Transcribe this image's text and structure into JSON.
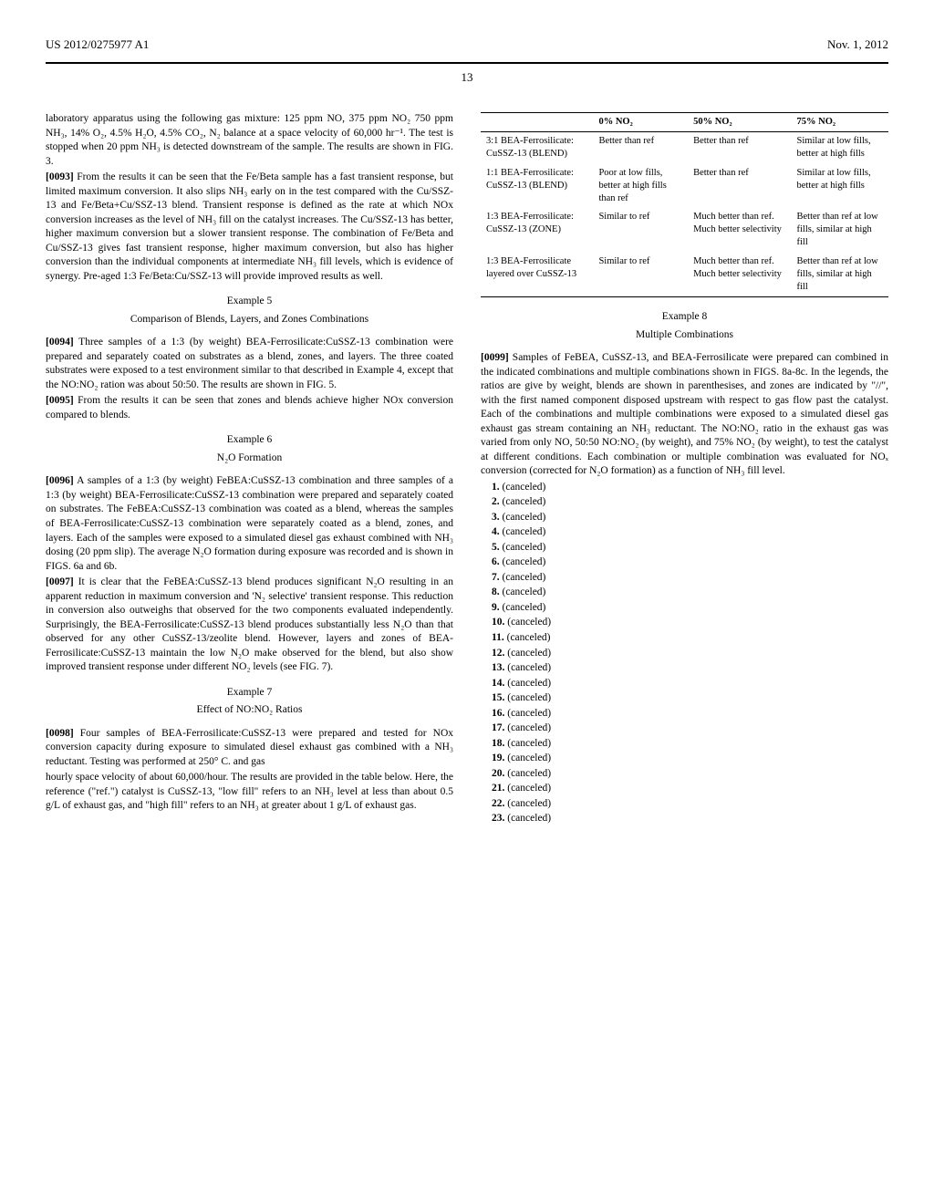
{
  "header": {
    "left": "US 2012/0275977 A1",
    "right": "Nov. 1, 2012"
  },
  "page_number": "13",
  "col1": {
    "p1_intro": "laboratory apparatus using the following gas mixture: 125 ppm NO, 375 ppm NO₂ 750 ppm NH₃, 14% O₂, 4.5% H₂O, 4.5% CO₂, N₂ balance at a space velocity of 60,000 hr⁻¹. The test is stopped when 20 ppm NH₃ is detected downstream of the sample. The results are shown in FIG. 3.",
    "p0093_num": "[0093]",
    "p0093": "From the results it can be seen that the Fe/Beta sample has a fast transient response, but limited maximum conversion. It also slips NH₃ early on in the test compared with the Cu/SSZ-13 and Fe/Beta+Cu/SSZ-13 blend. Transient response is defined as the rate at which NOx conversion increases as the level of NH₃ fill on the catalyst increases. The Cu/SSZ-13 has better, higher maximum conversion but a slower transient response. The combination of Fe/Beta and Cu/SSZ-13 gives fast transient response, higher maximum conversion, but also has higher conversion than the individual components at intermediate NH₃ fill levels, which is evidence of synergy. Pre-aged 1:3 Fe/Beta:Cu/SSZ-13 will provide improved results as well.",
    "ex5_head": "Example 5",
    "ex5_sub": "Comparison of Blends, Layers, and Zones Combinations",
    "p0094_num": "[0094]",
    "p0094": "Three samples of a 1:3 (by weight) BEA-Ferrosilicate:CuSSZ-13 combination were prepared and separately coated on substrates as a blend, zones, and layers. The three coated substrates were exposed to a test environment similar to that described in Example 4, except that the NO:NO₂ ration was about 50:50. The results are shown in FIG. 5.",
    "p0095_num": "[0095]",
    "p0095": "From the results it can be seen that zones and blends achieve higher NOx conversion compared to blends.",
    "ex6_head": "Example 6",
    "ex6_sub": "N₂O Formation",
    "p0096_num": "[0096]",
    "p0096": "A samples of a 1:3 (by weight) FeBEA:CuSSZ-13 combination and three samples of a 1:3 (by weight) BEA-Ferrosilicate:CuSSZ-13 combination were prepared and separately coated on substrates. The FeBEA:CuSSZ-13 combination was coated as a blend, whereas the samples of BEA-Ferrosilicate:CuSSZ-13 combination were separately coated as a blend, zones, and layers. Each of the samples were exposed to a simulated diesel gas exhaust combined with NH₃ dosing (20 ppm slip). The average N₂O formation during exposure was recorded and is shown in FIGS. 6a and 6b.",
    "p0097_num": "[0097]",
    "p0097": "It is clear that the FeBEA:CuSSZ-13 blend produces significant N₂O resulting in an apparent reduction in maximum conversion and 'N₂ selective' transient response. This reduction in conversion also outweighs that observed for the two components evaluated independently. Surprisingly, the BEA-Ferrosilicate:CuSSZ-13 blend produces substantially less N₂O than that observed for any other CuSSZ-13/zeolite blend. However, layers and zones of BEA-Ferrosilicate:CuSSZ-13 maintain the low N₂O make observed for the blend, but also show improved transient response under different NO₂ levels (see FIG. 7).",
    "ex7_head": "Example 7",
    "ex7_sub": "Effect of NO:NO₂ Ratios",
    "p0098_num": "[0098]",
    "p0098": "Four samples of BEA-Ferrosilicate:CuSSZ-13 were prepared and tested for NOx conversion capacity during exposure to simulated diesel exhaust gas combined with a NH₃ reductant. Testing was performed at 250° C. and gas"
  },
  "col2": {
    "p_top": "hourly space velocity of about 60,000/hour. The results are provided in the table below. Here, the reference (\"ref.\") catalyst is CuSSZ-13, \"low fill\" refers to an NH₃ level at less than about 0.5 g/L of exhaust gas, and \"high fill\" refers to an NH₃ at greater about 1 g/L of exhaust gas.",
    "table": {
      "headers": [
        "",
        "0% NO₂",
        "50% NO₂",
        "75% NO₂"
      ],
      "rows": [
        [
          "3:1 BEA-Ferrosilicate: CuSSZ-13 (BLEND)",
          "Better than ref",
          "Better than ref",
          "Similar at low fills, better at high fills"
        ],
        [
          "1:1 BEA-Ferrosilicate: CuSSZ-13 (BLEND)",
          "Poor at low fills, better at high fills than ref",
          "Better than ref",
          "Similar at low fills, better at high fills"
        ],
        [
          "1:3 BEA-Ferrosilicate: CuSSZ-13 (ZONE)",
          "Similar to ref",
          "Much better than ref. Much better selectivity",
          "Better than ref at low fills, similar at high fill"
        ],
        [
          "1:3 BEA-Ferrosilicate layered over CuSSZ-13",
          "Similar to ref",
          "Much better than ref. Much better selectivity",
          "Better than ref at low fills, similar at high fill"
        ]
      ]
    },
    "ex8_head": "Example 8",
    "ex8_sub": "Multiple Combinations",
    "p0099_num": "[0099]",
    "p0099": "Samples of FeBEA, CuSSZ-13, and BEA-Ferrosilicate were prepared can combined in the indicated combinations and multiple combinations shown in FIGS. 8a-8c. In the legends, the ratios are give by weight, blends are shown in parenthesises, and zones are indicated by \"//\", with the first named component disposed upstream with respect to gas flow past the catalyst. Each of the combinations and multiple combinations were exposed to a simulated diesel gas exhaust gas stream containing an NH₃ reductant. The NO:NO₂ ratio in the exhaust gas was varied from only NO, 50:50 NO:NO₂ (by weight), and 75% NO₂ (by weight), to test the catalyst at different conditions. Each combination or multiple combination was evaluated for NOₓ conversion (corrected for N₂O formation) as a function of NH₃ fill level.",
    "claims": [
      "1. (canceled)",
      "2. (canceled)",
      "3. (canceled)",
      "4. (canceled)",
      "5. (canceled)",
      "6. (canceled)",
      "7. (canceled)",
      "8. (canceled)",
      "9. (canceled)",
      "10. (canceled)",
      "11. (canceled)",
      "12. (canceled)",
      "13. (canceled)",
      "14. (canceled)",
      "15. (canceled)",
      "16. (canceled)",
      "17. (canceled)",
      "18. (canceled)",
      "19. (canceled)",
      "20. (canceled)",
      "21. (canceled)",
      "22. (canceled)",
      "23. (canceled)"
    ]
  }
}
